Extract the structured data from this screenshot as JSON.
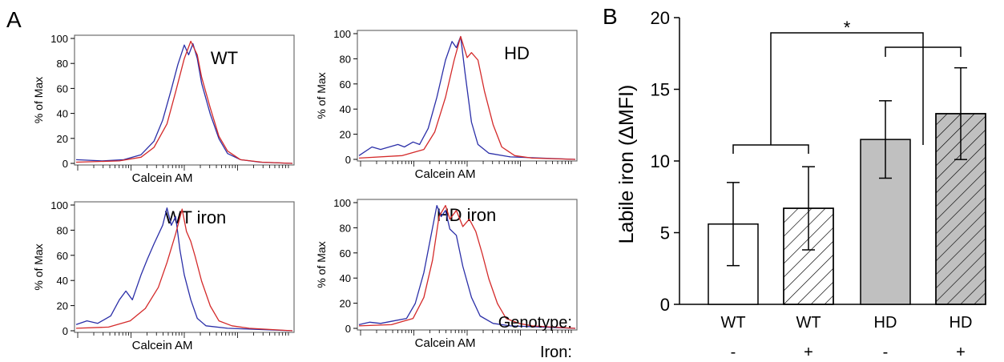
{
  "panels": {
    "a_label": "A",
    "b_label": "B"
  },
  "histograms": {
    "x_label": "Calcein AM",
    "y_label": "% of Max",
    "y_ticks": [
      "0",
      "20",
      "40",
      "60",
      "80",
      "100"
    ],
    "line_colors": {
      "blue": "#2b2fa8",
      "red": "#d42a2a"
    },
    "plots": [
      {
        "label": "WT"
      },
      {
        "label": "HD"
      },
      {
        "label": "WT iron"
      },
      {
        "label": "HD iron"
      }
    ]
  },
  "chart_data": {
    "type": "bar",
    "ylabel": "Labile iron (ΔMFI)",
    "ylim": [
      0,
      20
    ],
    "y_ticks": [
      0,
      5,
      10,
      15,
      20
    ],
    "row_labels": {
      "genotype": "Genotype:",
      "iron": "Iron:"
    },
    "bars": [
      {
        "genotype": "WT",
        "iron": "-",
        "value": 5.6,
        "error": 2.9,
        "fill": "#ffffff",
        "hatched": false
      },
      {
        "genotype": "WT",
        "iron": "+",
        "value": 6.7,
        "error": 2.9,
        "fill": "#ffffff",
        "hatched": true
      },
      {
        "genotype": "HD",
        "iron": "-",
        "value": 11.5,
        "error": 2.7,
        "fill": "#c0c0c0",
        "hatched": false
      },
      {
        "genotype": "HD",
        "iron": "+",
        "value": 13.3,
        "error": 3.2,
        "fill": "#c0c0c0",
        "hatched": true
      }
    ],
    "significance": "*"
  }
}
